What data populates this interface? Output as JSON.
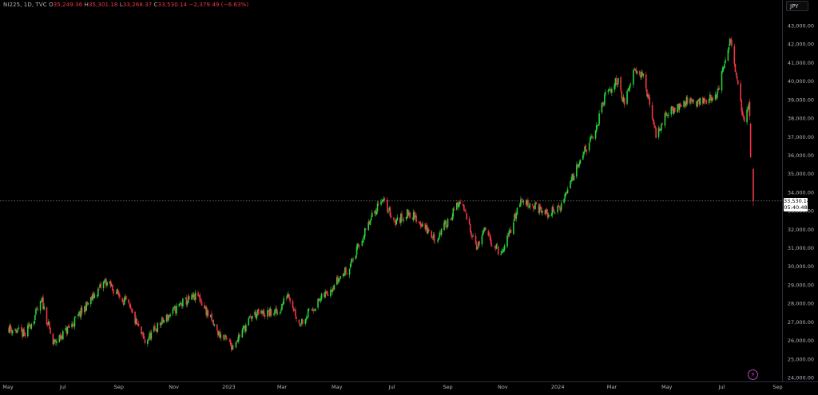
{
  "header": {
    "symbol": "NI225, 1D, TVC",
    "open_label": "O",
    "open": "35,249.36",
    "high_label": "H",
    "high": "35,301.18",
    "low_label": "L",
    "low": "33,268.37",
    "close_label": "C",
    "close": "33,530.14",
    "change": "−2,379.49 (−6.63%)"
  },
  "currency_button": "JPY",
  "last_price": {
    "value": "33,530.14",
    "countdown": "05:40:48"
  },
  "colors": {
    "up": "#27d33b",
    "down": "#f23645",
    "background": "#000000",
    "axis_text": "#b2b5be"
  },
  "icons": {
    "bottom_right": "lightning-icon"
  },
  "chart_data": {
    "type": "candlestick",
    "y_ticks": [
      "24,000.00",
      "25,000.00",
      "26,000.00",
      "27,000.00",
      "28,000.00",
      "29,000.00",
      "30,000.00",
      "31,000.00",
      "32,000.00",
      "33,000.00",
      "34,000.00",
      "35,000.00",
      "36,000.00",
      "37,000.00",
      "38,000.00",
      "39,000.00",
      "40,000.00",
      "41,000.00",
      "42,000.00",
      "43,000.00"
    ],
    "x_ticks": [
      "May",
      "Jul",
      "Sep",
      "Nov",
      "2023",
      "Mar",
      "May",
      "Jul",
      "Sep",
      "Nov",
      "2024",
      "Mar",
      "May",
      "Jul",
      "Sep"
    ],
    "ylim": [
      23600,
      43400
    ],
    "last_close": 33530.14,
    "path": [
      [
        "2022-05-01",
        26700
      ],
      [
        "2022-05-20",
        26300
      ],
      [
        "2022-06-08",
        28100
      ],
      [
        "2022-06-20",
        25800
      ],
      [
        "2022-07-10",
        26800
      ],
      [
        "2022-08-17",
        29200
      ],
      [
        "2022-09-10",
        28000
      ],
      [
        "2022-09-30",
        25900
      ],
      [
        "2022-10-15",
        26800
      ],
      [
        "2022-11-10",
        28000
      ],
      [
        "2022-11-28",
        28400
      ],
      [
        "2022-12-20",
        26400
      ],
      [
        "2023-01-05",
        25700
      ],
      [
        "2023-01-28",
        27400
      ],
      [
        "2023-02-25",
        27500
      ],
      [
        "2023-03-08",
        28600
      ],
      [
        "2023-03-20",
        26900
      ],
      [
        "2023-04-20",
        28600
      ],
      [
        "2023-05-15",
        30000
      ],
      [
        "2023-06-19",
        33700
      ],
      [
        "2023-07-05",
        32400
      ],
      [
        "2023-07-20",
        32900
      ],
      [
        "2023-08-05",
        32200
      ],
      [
        "2023-08-18",
        31400
      ],
      [
        "2023-09-15",
        33500
      ],
      [
        "2023-10-04",
        31000
      ],
      [
        "2023-10-11",
        31900
      ],
      [
        "2023-10-31",
        30600
      ],
      [
        "2023-11-20",
        33500
      ],
      [
        "2023-12-01",
        33400
      ],
      [
        "2023-12-20",
        32800
      ],
      [
        "2024-01-04",
        33200
      ],
      [
        "2024-01-25",
        35800
      ],
      [
        "2024-02-10",
        37000
      ],
      [
        "2024-02-22",
        39100
      ],
      [
        "2024-03-08",
        40100
      ],
      [
        "2024-03-15",
        38700
      ],
      [
        "2024-03-26",
        40800
      ],
      [
        "2024-04-05",
        40200
      ],
      [
        "2024-04-19",
        37100
      ],
      [
        "2024-05-01",
        38200
      ],
      [
        "2024-05-20",
        38900
      ],
      [
        "2024-06-10",
        38900
      ],
      [
        "2024-06-25",
        39200
      ],
      [
        "2024-07-11",
        42200
      ],
      [
        "2024-07-25",
        37900
      ],
      [
        "2024-08-01",
        39000
      ],
      [
        "2024-08-02",
        35900
      ],
      [
        "2024-08-05",
        33530
      ]
    ]
  }
}
